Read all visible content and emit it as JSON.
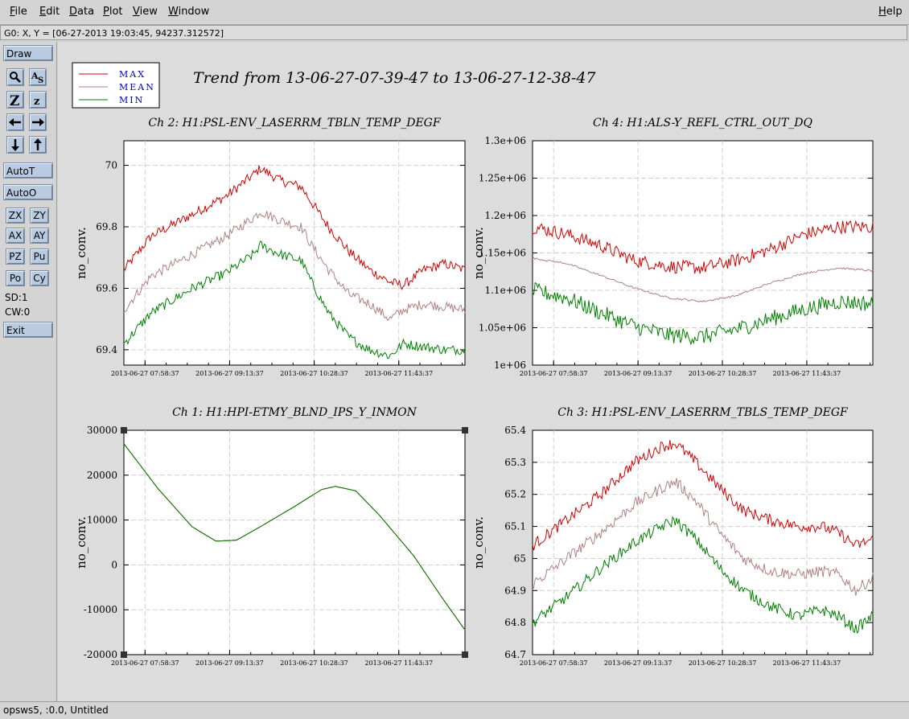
{
  "menu": {
    "file": "File",
    "edit": "Edit",
    "data": "Data",
    "plot": "Plot",
    "view": "View",
    "window": "Window",
    "help": "Help"
  },
  "status": "G0: X, Y = [06-27-2013 19:03:45, 94237.312572]",
  "toolbar": {
    "draw": "Draw",
    "autot": "AutoT",
    "autoo": "AutoO",
    "zx": "ZX",
    "zy": "ZY",
    "ax": "AX",
    "ay": "AY",
    "pz": "PZ",
    "pu": "Pu",
    "po": "Po",
    "cy": "Cy",
    "sd": "SD:1",
    "cw": "CW:0",
    "exit": "Exit",
    "icons": [
      "zoom-icon",
      "autoscale-icon",
      "zoom-out-large-icon",
      "zoom-out-small-icon",
      "arrow-left-icon",
      "arrow-right-icon",
      "arrow-down-icon",
      "arrow-up-icon"
    ]
  },
  "bottom": "opsws5, :0.0, Untitled",
  "title": "Trend from 13-06-27-07-39-47 to 13-06-27-12-38-47",
  "legend": [
    {
      "name": "MAX",
      "color": "#d40000"
    },
    {
      "name": "MEAN",
      "color": "#b08080"
    },
    {
      "name": "MIN",
      "color": "#008000"
    }
  ],
  "chart_data": [
    {
      "type": "line",
      "title": "Ch 2: H1:PSL-ENV_LASERRM_TBLN_TEMP_DEGF",
      "ylabel": "no_conv.",
      "ylim": [
        69.35,
        70.08
      ],
      "yticks": [
        69.4,
        69.6,
        69.8,
        70
      ],
      "ytick_labels": [
        "69.4",
        "69.6",
        "69.8",
        "70"
      ],
      "xticks": [
        "2013-06-27 07:58:37",
        "2013-06-27 09:13:37",
        "2013-06-27 10:28:37",
        "2013-06-27 11:43:37"
      ],
      "series": [
        {
          "name": "MAX",
          "keypoints": [
            [
              0,
              69.66
            ],
            [
              0.08,
              69.77
            ],
            [
              0.2,
              69.84
            ],
            [
              0.3,
              69.9
            ],
            [
              0.38,
              69.97
            ],
            [
              0.4,
              69.99
            ],
            [
              0.46,
              69.95
            ],
            [
              0.52,
              69.93
            ],
            [
              0.55,
              69.88
            ],
            [
              0.6,
              69.8
            ],
            [
              0.66,
              69.72
            ],
            [
              0.72,
              69.66
            ],
            [
              0.78,
              69.62
            ],
            [
              0.82,
              69.61
            ],
            [
              0.88,
              69.66
            ],
            [
              0.94,
              69.68
            ],
            [
              1,
              69.66
            ]
          ]
        },
        {
          "name": "MEAN",
          "keypoints": [
            [
              0,
              69.53
            ],
            [
              0.08,
              69.64
            ],
            [
              0.2,
              69.71
            ],
            [
              0.3,
              69.77
            ],
            [
              0.38,
              69.83
            ],
            [
              0.4,
              69.85
            ],
            [
              0.46,
              69.82
            ],
            [
              0.52,
              69.8
            ],
            [
              0.55,
              69.74
            ],
            [
              0.6,
              69.66
            ],
            [
              0.66,
              69.58
            ],
            [
              0.72,
              69.55
            ],
            [
              0.78,
              69.5
            ],
            [
              0.82,
              69.53
            ],
            [
              0.88,
              69.55
            ],
            [
              0.94,
              69.54
            ],
            [
              1,
              69.53
            ]
          ]
        },
        {
          "name": "MIN",
          "keypoints": [
            [
              0,
              69.42
            ],
            [
              0.08,
              69.52
            ],
            [
              0.2,
              69.6
            ],
            [
              0.3,
              69.65
            ],
            [
              0.38,
              69.71
            ],
            [
              0.4,
              69.74
            ],
            [
              0.46,
              69.71
            ],
            [
              0.52,
              69.69
            ],
            [
              0.55,
              69.62
            ],
            [
              0.6,
              69.52
            ],
            [
              0.66,
              69.44
            ],
            [
              0.72,
              69.4
            ],
            [
              0.78,
              69.38
            ],
            [
              0.82,
              69.42
            ],
            [
              0.88,
              69.41
            ],
            [
              0.94,
              69.4
            ],
            [
              1,
              69.4
            ]
          ]
        }
      ],
      "noise": 0.016
    },
    {
      "type": "line",
      "title": "Ch 4: H1:ALS-Y_REFL_CTRL_OUT_DQ",
      "ylabel": "no_conv.",
      "ylim": [
        1000000,
        1300000
      ],
      "yticks": [
        1000000,
        1050000,
        1100000,
        1150000,
        1200000,
        1250000,
        1300000
      ],
      "ytick_labels": [
        "1e+06",
        "1.05e+06",
        "1.1e+06",
        "1.15e+06",
        "1.2e+06",
        "1.25e+06",
        "1.3e+06"
      ],
      "xticks": [
        "2013-06-27 07:58:37",
        "2013-06-27 09:13:37",
        "2013-06-27 10:28:37",
        "2013-06-27 11:43:37"
      ],
      "series": [
        {
          "name": "MAX",
          "keypoints": [
            [
              0,
              1185000
            ],
            [
              0.1,
              1175000
            ],
            [
              0.2,
              1160000
            ],
            [
              0.3,
              1140000
            ],
            [
              0.4,
              1132000
            ],
            [
              0.5,
              1130000
            ],
            [
              0.6,
              1140000
            ],
            [
              0.7,
              1155000
            ],
            [
              0.8,
              1175000
            ],
            [
              0.9,
              1185000
            ],
            [
              1,
              1185000
            ]
          ]
        },
        {
          "name": "MEAN",
          "keypoints": [
            [
              0,
              1143000
            ],
            [
              0.1,
              1136000
            ],
            [
              0.2,
              1120000
            ],
            [
              0.3,
              1103000
            ],
            [
              0.4,
              1090000
            ],
            [
              0.5,
              1085000
            ],
            [
              0.6,
              1093000
            ],
            [
              0.7,
              1110000
            ],
            [
              0.8,
              1123000
            ],
            [
              0.9,
              1130000
            ],
            [
              1,
              1126000
            ]
          ]
        },
        {
          "name": "MIN",
          "keypoints": [
            [
              0,
              1100000
            ],
            [
              0.1,
              1090000
            ],
            [
              0.2,
              1070000
            ],
            [
              0.3,
              1052000
            ],
            [
              0.4,
              1040000
            ],
            [
              0.5,
              1038000
            ],
            [
              0.6,
              1048000
            ],
            [
              0.7,
              1062000
            ],
            [
              0.8,
              1075000
            ],
            [
              0.9,
              1085000
            ],
            [
              1,
              1082000
            ]
          ]
        }
      ],
      "noise": [
        9000,
        1200,
        11000
      ]
    },
    {
      "type": "line",
      "title": "Ch 1: H1:HPI-ETMY_BLND_IPS_Y_INMON",
      "ylabel": "no_conv.",
      "ylim": [
        -20000,
        30000
      ],
      "yticks": [
        -20000,
        -10000,
        0,
        10000,
        20000,
        30000
      ],
      "ytick_labels": [
        "-20000",
        "-10000",
        "0",
        "10000",
        "20000",
        "30000"
      ],
      "xticks": [
        "2013-06-27 07:58:37",
        "2013-06-27 09:13:37",
        "2013-06-27 10:28:37",
        "2013-06-27 11:43:37"
      ],
      "series": [
        {
          "name": "MAX",
          "keypoints": [
            [
              0,
              27000
            ],
            [
              0.1,
              17000
            ],
            [
              0.2,
              8500
            ],
            [
              0.27,
              5300
            ],
            [
              0.33,
              5500
            ],
            [
              0.4,
              8500
            ],
            [
              0.5,
              13000
            ],
            [
              0.58,
              16800
            ],
            [
              0.62,
              17500
            ],
            [
              0.68,
              16500
            ],
            [
              0.75,
              11000
            ],
            [
              0.85,
              2000
            ],
            [
              0.93,
              -7000
            ],
            [
              1,
              -14500
            ]
          ]
        },
        {
          "name": "MEAN",
          "keypoints": [
            [
              0,
              27000
            ],
            [
              0.1,
              17000
            ],
            [
              0.2,
              8500
            ],
            [
              0.27,
              5300
            ],
            [
              0.33,
              5500
            ],
            [
              0.4,
              8500
            ],
            [
              0.5,
              13000
            ],
            [
              0.58,
              16800
            ],
            [
              0.62,
              17500
            ],
            [
              0.68,
              16500
            ],
            [
              0.75,
              11000
            ],
            [
              0.85,
              2000
            ],
            [
              0.93,
              -7000
            ],
            [
              1,
              -14500
            ]
          ]
        },
        {
          "name": "MIN",
          "keypoints": [
            [
              0,
              27000
            ],
            [
              0.1,
              17000
            ],
            [
              0.2,
              8500
            ],
            [
              0.27,
              5300
            ],
            [
              0.33,
              5500
            ],
            [
              0.4,
              8500
            ],
            [
              0.5,
              13000
            ],
            [
              0.58,
              16800
            ],
            [
              0.62,
              17500
            ],
            [
              0.68,
              16500
            ],
            [
              0.75,
              11000
            ],
            [
              0.85,
              2000
            ],
            [
              0.93,
              -7000
            ],
            [
              1,
              -14500
            ]
          ]
        }
      ],
      "noise": 0
    },
    {
      "type": "line",
      "title": "Ch 3: H1:PSL-ENV_LASERRM_TBLS_TEMP_DEGF",
      "ylabel": "no_conv.",
      "ylim": [
        64.7,
        65.4
      ],
      "yticks": [
        64.7,
        64.8,
        64.9,
        65,
        65.1,
        65.2,
        65.3,
        65.4
      ],
      "ytick_labels": [
        "64.7",
        "64.8",
        "64.9",
        "65",
        "65.1",
        "65.2",
        "65.3",
        "65.4"
      ],
      "xticks": [
        "2013-06-27 07:58:37",
        "2013-06-27 09:13:37",
        "2013-06-27 10:28:37",
        "2013-06-27 11:43:37"
      ],
      "series": [
        {
          "name": "MAX",
          "keypoints": [
            [
              0,
              65.04
            ],
            [
              0.1,
              65.12
            ],
            [
              0.2,
              65.2
            ],
            [
              0.3,
              65.3
            ],
            [
              0.38,
              65.35
            ],
            [
              0.42,
              65.36
            ],
            [
              0.48,
              65.3
            ],
            [
              0.55,
              65.22
            ],
            [
              0.62,
              65.15
            ],
            [
              0.7,
              65.12
            ],
            [
              0.78,
              65.1
            ],
            [
              0.85,
              65.1
            ],
            [
              0.9,
              65.08
            ],
            [
              0.95,
              65.04
            ],
            [
              1,
              65.06
            ]
          ]
        },
        {
          "name": "MEAN",
          "keypoints": [
            [
              0,
              64.92
            ],
            [
              0.1,
              65.0
            ],
            [
              0.2,
              65.08
            ],
            [
              0.3,
              65.17
            ],
            [
              0.38,
              65.22
            ],
            [
              0.42,
              65.24
            ],
            [
              0.48,
              65.18
            ],
            [
              0.55,
              65.08
            ],
            [
              0.62,
              65.0
            ],
            [
              0.7,
              64.96
            ],
            [
              0.78,
              64.95
            ],
            [
              0.85,
              64.96
            ],
            [
              0.9,
              64.95
            ],
            [
              0.95,
              64.9
            ],
            [
              1,
              64.94
            ]
          ]
        },
        {
          "name": "MIN",
          "keypoints": [
            [
              0,
              64.8
            ],
            [
              0.1,
              64.88
            ],
            [
              0.2,
              64.97
            ],
            [
              0.3,
              65.05
            ],
            [
              0.38,
              65.1
            ],
            [
              0.42,
              65.12
            ],
            [
              0.48,
              65.06
            ],
            [
              0.55,
              64.97
            ],
            [
              0.62,
              64.9
            ],
            [
              0.7,
              64.85
            ],
            [
              0.78,
              64.82
            ],
            [
              0.85,
              64.84
            ],
            [
              0.9,
              64.82
            ],
            [
              0.95,
              64.78
            ],
            [
              1,
              64.82
            ]
          ]
        }
      ],
      "noise": 0.018
    }
  ]
}
